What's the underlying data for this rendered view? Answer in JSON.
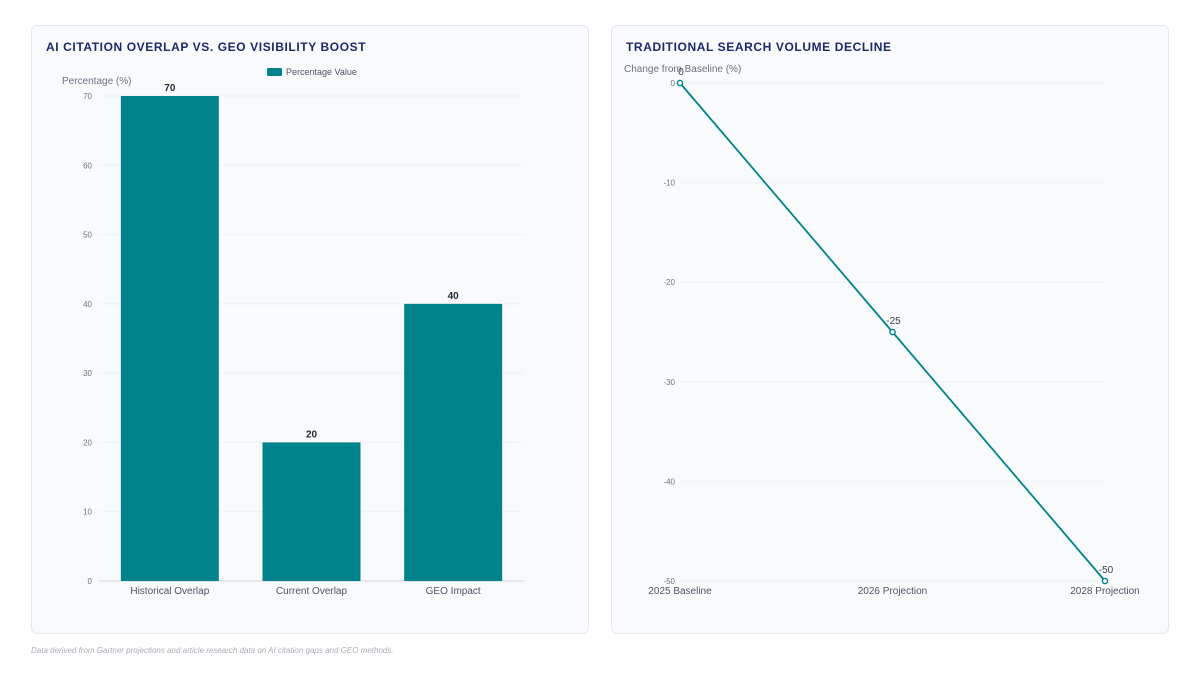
{
  "footnote": "Data derived from Gartner projections and article research data on AI citation gaps and GEO methods.",
  "chart_data": [
    {
      "type": "bar",
      "title": "AI CITATION OVERLAP VS. GEO VISIBILITY BOOST",
      "categories": [
        "Historical Overlap",
        "Current Overlap",
        "GEO Impact"
      ],
      "series": [
        {
          "name": "Percentage Value",
          "values": [
            70,
            20,
            40
          ],
          "color": "#00838a"
        }
      ],
      "ylabel": "Percentage (%)",
      "ylim": [
        0,
        70
      ],
      "yticks": [
        0,
        10,
        20,
        30,
        40,
        50,
        60,
        70
      ],
      "legend": "top",
      "grid": true
    },
    {
      "type": "line",
      "title": "TRADITIONAL SEARCH VOLUME DECLINE",
      "categories": [
        "2025 Baseline",
        "2026 Projection",
        "2028 Projection"
      ],
      "series": [
        {
          "values": [
            0,
            -25,
            -50
          ],
          "color": "#00838a"
        }
      ],
      "ylabel": "Change from Baseline (%)",
      "ylim": [
        -50,
        0
      ],
      "yticks": [
        0,
        -10,
        -20,
        -30,
        -40,
        -50
      ],
      "grid": true
    }
  ]
}
